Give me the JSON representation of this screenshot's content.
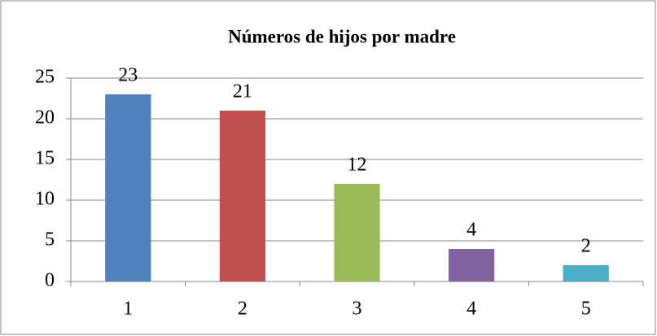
{
  "chart_data": {
    "type": "bar",
    "title": "Números de hijos por madre",
    "categories": [
      "1",
      "2",
      "3",
      "4",
      "5"
    ],
    "values": [
      23,
      21,
      12,
      4,
      2
    ],
    "colors": [
      "#4f81bd",
      "#c0504d",
      "#9bbb59",
      "#8064a2",
      "#4bacc6"
    ],
    "ylim": [
      0,
      25
    ],
    "yticks": [
      0,
      5,
      10,
      15,
      20,
      25
    ],
    "grid": true
  }
}
